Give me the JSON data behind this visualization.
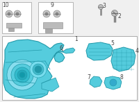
{
  "bg_color": "#f0f0f0",
  "part_color": "#55ccdd",
  "part_edge_color": "#2299aa",
  "part_inner_color": "#2299aa",
  "white": "#ffffff",
  "gray_line": "#999999",
  "label_color": "#444444",
  "box_edge": "#aaaaaa",
  "figsize": [
    2.0,
    1.47
  ],
  "dpi": 100
}
